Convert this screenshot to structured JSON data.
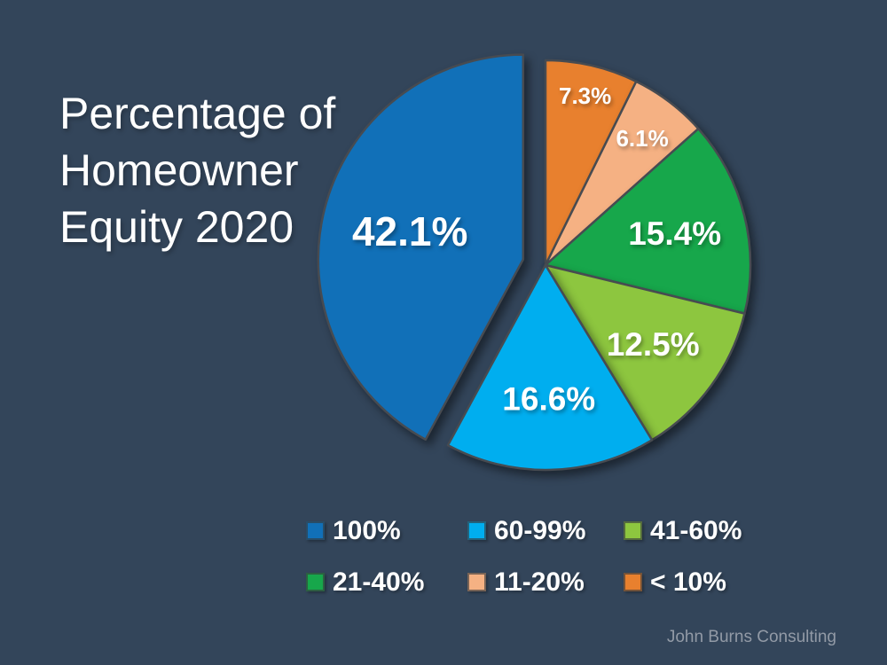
{
  "page": {
    "background_color": "#33455a",
    "attribution": "John Burns Consulting"
  },
  "title": {
    "full": "Percentage of Homeowner Equity 2020",
    "lines": [
      "Percentage of",
      "Homeowner",
      "Equity 2020"
    ]
  },
  "chart_data": {
    "type": "pie",
    "title": "Percentage of Homeowner Equity 2020",
    "value_unit": "%",
    "start_angle_deg": 0,
    "direction": "clockwise",
    "slices": [
      {
        "label": "< 10%",
        "value": 7.3,
        "data_label": "7.3%",
        "color": "#e8802e",
        "label_r": 0.85,
        "exploded": false
      },
      {
        "label": "11-20%",
        "value": 6.1,
        "data_label": "6.1%",
        "color": "#f5b183",
        "label_r": 0.78,
        "exploded": false
      },
      {
        "label": "21-40%",
        "value": 15.4,
        "data_label": "15.4%",
        "color": "#17a74b",
        "label_r": 0.65,
        "exploded": false
      },
      {
        "label": "41-60%",
        "value": 12.5,
        "data_label": "12.5%",
        "color": "#8dc63f",
        "label_r": 0.65,
        "exploded": false
      },
      {
        "label": "60-99%",
        "value": 16.6,
        "data_label": "16.6%",
        "color": "#00aeef",
        "label_r": 0.65,
        "exploded": false
      },
      {
        "label": "100%",
        "value": 42.1,
        "data_label": "42.1%",
        "color": "#1170b8",
        "label_r": 0.57,
        "exploded": true
      }
    ],
    "legend": {
      "position": "bottom",
      "rows": [
        [
          {
            "label": "100%",
            "color": "#1170b8"
          },
          {
            "label": "60-99%",
            "color": "#00aeef"
          },
          {
            "label": "41-60%",
            "color": "#8dc63f"
          }
        ],
        [
          {
            "label": "21-40%",
            "color": "#17a74b"
          },
          {
            "label": "11-20%",
            "color": "#f5b183"
          },
          {
            "label": "< 10%",
            "color": "#e8802e"
          }
        ]
      ]
    }
  }
}
